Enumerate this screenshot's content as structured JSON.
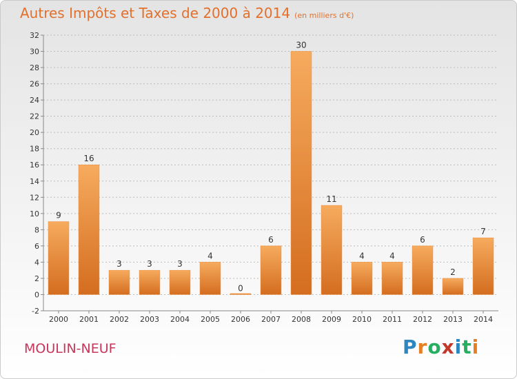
{
  "header": {
    "title": "Autres Impôts et Taxes de 2000 à 2014",
    "unit": "(en milliers d'€)"
  },
  "footer": {
    "commune": "MOULIN-NEUF",
    "logo": {
      "letters": [
        "P",
        "r",
        "o",
        "x",
        "i",
        "t",
        "i"
      ],
      "colors": [
        "#2e86c1",
        "#e67e22",
        "#27ae60",
        "#c0392b",
        "#2e86c1",
        "#27ae60",
        "#e67e22"
      ]
    }
  },
  "colors": {
    "bar": "#ee8a35",
    "bar_light": "#f6ab5e",
    "bar_dark": "#d46d1f",
    "grid": "#bbbbbb",
    "axis": "#888888"
  },
  "chart_data": {
    "type": "bar",
    "title": "Autres Impôts et Taxes de 2000 à 2014",
    "subtitle": "(en milliers d'€)",
    "categories": [
      "2000",
      "2001",
      "2002",
      "2003",
      "2004",
      "2005",
      "2006",
      "2007",
      "2008",
      "2009",
      "2010",
      "2011",
      "2012",
      "2013",
      "2014"
    ],
    "values": [
      9,
      16,
      3,
      3,
      3,
      4,
      0,
      6,
      30,
      11,
      4,
      4,
      6,
      2,
      7
    ],
    "ylim": [
      -2,
      32
    ],
    "yticks": [
      -2,
      0,
      2,
      4,
      6,
      8,
      10,
      12,
      14,
      16,
      18,
      20,
      22,
      24,
      26,
      28,
      30,
      32
    ],
    "grid": true,
    "xlabel": "",
    "ylabel": ""
  }
}
